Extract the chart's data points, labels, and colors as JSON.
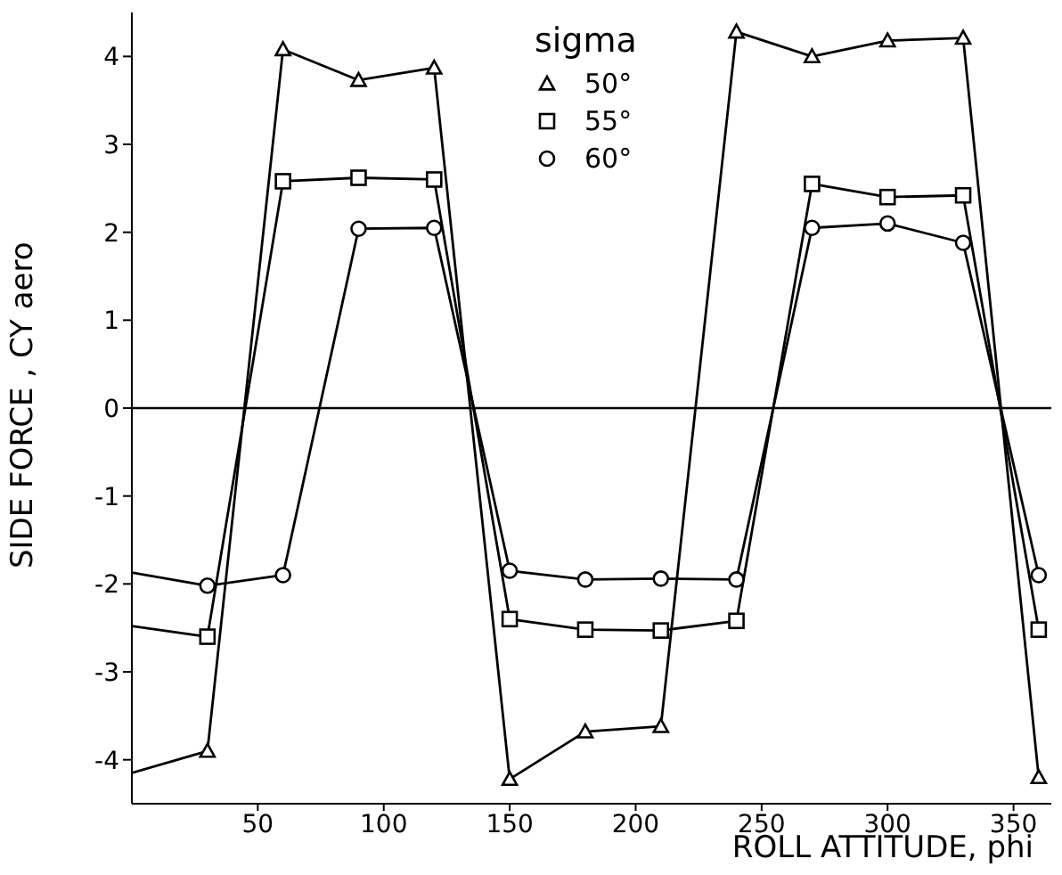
{
  "chart_data": {
    "type": "line",
    "xlabel": "ROLL ATTITUDE, phi",
    "ylabel": "SIDE FORCE , CY aero",
    "legend_title": "sigma",
    "legend": "top",
    "line_style": "solid",
    "x": [
      0,
      30,
      60,
      90,
      120,
      150,
      180,
      210,
      240,
      270,
      300,
      330,
      360
    ],
    "series": [
      {
        "name": "50°",
        "color": "#000000",
        "marker": "triangle",
        "values": [
          -4.15,
          -3.9,
          4.08,
          3.73,
          3.87,
          -4.22,
          -3.68,
          -3.62,
          4.28,
          4.0,
          4.18,
          4.21,
          -4.2
        ]
      },
      {
        "name": "55°",
        "color": "#000000",
        "marker": "square",
        "values": [
          -2.48,
          -2.6,
          2.58,
          2.62,
          2.6,
          -2.4,
          -2.52,
          -2.53,
          -2.42,
          2.55,
          2.4,
          2.42,
          -2.52
        ]
      },
      {
        "name": "60°",
        "color": "#000000",
        "marker": "circle",
        "values": [
          -1.87,
          -2.02,
          -1.9,
          2.04,
          2.05,
          -1.85,
          -1.95,
          -1.94,
          -1.95,
          2.05,
          2.1,
          1.88,
          -1.9
        ]
      }
    ],
    "xlim": [
      0,
      365
    ],
    "xticks": [
      50,
      100,
      150,
      200,
      250,
      300,
      350
    ],
    "ylim": [
      -4.5,
      4.5
    ],
    "yticks": [
      -4,
      -3,
      -2,
      -1,
      0,
      1,
      2,
      3,
      4
    ],
    "ref_lines": [
      {
        "axis": "y",
        "value": 0,
        "color": "#000000"
      }
    ]
  }
}
